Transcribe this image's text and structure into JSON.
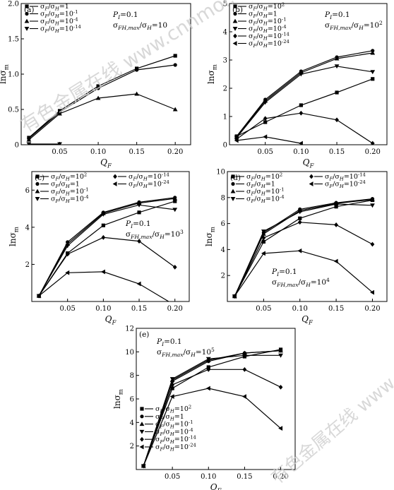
{
  "watermark": {
    "text": "有色金属在线 www.cnnmol.com"
  },
  "chart_data": [
    {
      "panel": "(a)",
      "type": "line",
      "xlabel": "Q_F",
      "ylabel": "lnσ_m",
      "xlim": [
        0,
        0.22
      ],
      "ylim": [
        0,
        2.0
      ],
      "xticks": [
        "0.05",
        "0.10",
        "0.15",
        "0.20"
      ],
      "yticks": [
        "0",
        "0.5",
        "1.0",
        "1.5",
        "2.0"
      ],
      "annotation": [
        "P_I=0.1",
        "σ_FH,max/σ_H=10"
      ],
      "legend_position": "top-left",
      "series": [
        {
          "name": "σ_F/σ_H=1",
          "marker": "square",
          "x": [
            0.01,
            0.05,
            0.1,
            0.15,
            0.2
          ],
          "y": [
            0.1,
            0.48,
            0.83,
            1.08,
            1.26
          ]
        },
        {
          "name": "σ_F/σ_H=10^-1",
          "marker": "circle",
          "x": [
            0.01,
            0.05,
            0.1,
            0.15,
            0.2
          ],
          "y": [
            0.09,
            0.46,
            0.8,
            1.06,
            1.13
          ]
        },
        {
          "name": "σ_F/σ_H=10^-4",
          "marker": "triangle-up",
          "x": [
            0.01,
            0.05,
            0.1,
            0.15,
            0.2
          ],
          "y": [
            0.07,
            0.44,
            0.66,
            0.72,
            0.5
          ]
        },
        {
          "name": "σ_F/σ_H=10^-14",
          "marker": "triangle-down",
          "x": [
            0.01,
            0.05
          ],
          "y": [
            0.01,
            0.01
          ]
        }
      ]
    },
    {
      "panel": "(b)",
      "type": "line",
      "xlabel": "Q_F",
      "ylabel": "lnσ_m",
      "xlim": [
        0,
        0.22
      ],
      "ylim": [
        0,
        5
      ],
      "xticks": [
        "0.05",
        "0.10",
        "0.15",
        "0.20"
      ],
      "yticks": [
        "0",
        "1",
        "2",
        "3",
        "4",
        "5"
      ],
      "annotation": [
        "P_I=0.1",
        "σ_FH,max/σ_H=10^2"
      ],
      "legend_position": "top-left",
      "series": [
        {
          "name": "σ_F/σ_H=10^2",
          "marker": "square",
          "x": [
            0.01,
            0.05,
            0.1,
            0.15,
            0.2
          ],
          "y": [
            0.3,
            0.8,
            1.4,
            1.85,
            2.33
          ]
        },
        {
          "name": "σ_F/σ_H=1",
          "marker": "circle",
          "x": [
            0.01,
            0.05,
            0.1,
            0.15,
            0.2
          ],
          "y": [
            0.3,
            1.6,
            2.6,
            3.1,
            3.33
          ]
        },
        {
          "name": "σ_F/σ_H=10^-1",
          "marker": "triangle-up",
          "x": [
            0.01,
            0.05,
            0.1,
            0.15,
            0.2
          ],
          "y": [
            0.28,
            1.55,
            2.55,
            3.05,
            3.25
          ]
        },
        {
          "name": "σ_F/σ_H=10^-4",
          "marker": "triangle-down",
          "x": [
            0.01,
            0.05,
            0.1,
            0.15,
            0.2
          ],
          "y": [
            0.25,
            1.5,
            2.5,
            2.78,
            2.58
          ]
        },
        {
          "name": "σ_F/σ_H=10^-14",
          "marker": "diamond",
          "x": [
            0.01,
            0.05,
            0.1,
            0.15,
            0.2
          ],
          "y": [
            0.2,
            0.93,
            1.12,
            0.88,
            0.05
          ]
        },
        {
          "name": "σ_F/σ_H=10^-24",
          "marker": "triangle-left",
          "x": [
            0.01,
            0.05,
            0.1
          ],
          "y": [
            0.15,
            0.28,
            0.05
          ]
        }
      ]
    },
    {
      "panel": "(c)",
      "type": "line",
      "xlabel": "Q_F",
      "ylabel": "lnσ_m",
      "xlim": [
        0,
        0.22
      ],
      "ylim": [
        0,
        7
      ],
      "xticks": [
        "0.05",
        "0.10",
        "0.15",
        "0.20"
      ],
      "yticks": [
        "2",
        "4",
        "6"
      ],
      "annotation": [
        "P_I=0.1",
        "σ_FH,max/σ_H=10^3"
      ],
      "legend_position": "top",
      "series": [
        {
          "name": "σ_F/σ_H=10^2",
          "marker": "square",
          "x": [
            0.01,
            0.05,
            0.1,
            0.15,
            0.2
          ],
          "y": [
            0.3,
            2.6,
            4.1,
            4.8,
            5.4
          ]
        },
        {
          "name": "σ_F/σ_H=1",
          "marker": "circle",
          "x": [
            0.01,
            0.05,
            0.1,
            0.15,
            0.2
          ],
          "y": [
            0.3,
            3.2,
            4.8,
            5.35,
            5.6
          ]
        },
        {
          "name": "σ_F/σ_H=10^-1",
          "marker": "triangle-up",
          "x": [
            0.01,
            0.05,
            0.1,
            0.15,
            0.2
          ],
          "y": [
            0.3,
            3.1,
            4.75,
            5.3,
            5.55
          ]
        },
        {
          "name": "σ_F/σ_H=10^-4",
          "marker": "triangle-down",
          "x": [
            0.01,
            0.05,
            0.1,
            0.15,
            0.2
          ],
          "y": [
            0.3,
            3.0,
            4.7,
            5.2,
            4.95
          ]
        },
        {
          "name": "σ_F/σ_H=10^-14",
          "marker": "diamond",
          "x": [
            0.01,
            0.05,
            0.1,
            0.15,
            0.2
          ],
          "y": [
            0.3,
            2.55,
            3.45,
            3.25,
            1.85
          ]
        },
        {
          "name": "σ_F/σ_H=10^-24",
          "marker": "triangle-left",
          "x": [
            0.01,
            0.05,
            0.1,
            0.15,
            0.2
          ],
          "y": [
            0.3,
            1.55,
            1.6,
            0.95,
            -0.2
          ]
        }
      ]
    },
    {
      "panel": "(d)",
      "type": "line",
      "xlabel": "Q_F",
      "ylabel": "lnσ_m",
      "xlim": [
        0,
        0.22
      ],
      "ylim": [
        0,
        10
      ],
      "xticks": [
        "0.05",
        "0.10",
        "0.15",
        "0.20"
      ],
      "yticks": [
        "2",
        "4",
        "6",
        "8",
        "10"
      ],
      "annotation": [
        "P_I=0.1",
        "σ_FH,max/σ_H=10^4"
      ],
      "legend_position": "top",
      "series": [
        {
          "name": "σ_F/σ_H=10^2",
          "marker": "square",
          "x": [
            0.01,
            0.05,
            0.1,
            0.15,
            0.2
          ],
          "y": [
            0.4,
            4.6,
            6.4,
            7.3,
            7.8
          ]
        },
        {
          "name": "σ_F/σ_H=1",
          "marker": "circle",
          "x": [
            0.01,
            0.05,
            0.1,
            0.15,
            0.2
          ],
          "y": [
            0.4,
            5.3,
            7.1,
            7.6,
            7.9
          ]
        },
        {
          "name": "σ_F/σ_H=10^-1",
          "marker": "triangle-up",
          "x": [
            0.01,
            0.05,
            0.1,
            0.15,
            0.2
          ],
          "y": [
            0.4,
            5.2,
            7.0,
            7.55,
            7.85
          ]
        },
        {
          "name": "σ_F/σ_H=10^-4",
          "marker": "triangle-down",
          "x": [
            0.01,
            0.05,
            0.1,
            0.15,
            0.2
          ],
          "y": [
            0.4,
            5.4,
            6.9,
            7.5,
            7.4
          ]
        },
        {
          "name": "σ_F/σ_H=10^-14",
          "marker": "diamond",
          "x": [
            0.01,
            0.05,
            0.1,
            0.15,
            0.2
          ],
          "y": [
            0.4,
            4.9,
            6.1,
            5.9,
            4.4
          ]
        },
        {
          "name": "σ_F/σ_H=10^-24",
          "marker": "triangle-left",
          "x": [
            0.01,
            0.05,
            0.1,
            0.15,
            0.2
          ],
          "y": [
            0.4,
            3.7,
            3.9,
            3.1,
            0.7
          ]
        }
      ]
    },
    {
      "panel": "(e)",
      "type": "line",
      "xlabel": "Q_F",
      "ylabel": "lnσ_m",
      "xlim": [
        0,
        0.22
      ],
      "ylim": [
        0,
        12
      ],
      "xticks": [
        "0.05",
        "0.10",
        "0.15",
        "0.20"
      ],
      "yticks": [
        "2",
        "4",
        "6",
        "8",
        "10",
        "12"
      ],
      "annotation": [
        "P_I=0.1",
        "σ_FH,max/σ_H=10^5"
      ],
      "legend_position": "bottom-right",
      "series": [
        {
          "name": "σ_F/σ_H=10^2",
          "marker": "square",
          "x": [
            0.01,
            0.05,
            0.1,
            0.15,
            0.2
          ],
          "y": [
            0.3,
            6.9,
            8.7,
            9.6,
            10.2
          ]
        },
        {
          "name": "σ_F/σ_H=1",
          "marker": "circle",
          "x": [
            0.01,
            0.05,
            0.1,
            0.15,
            0.2
          ],
          "y": [
            0.3,
            7.5,
            9.2,
            9.9,
            10.1
          ]
        },
        {
          "name": "σ_F/σ_H=10^-1",
          "marker": "triangle-up",
          "x": [
            0.01,
            0.05,
            0.1,
            0.15,
            0.2
          ],
          "y": [
            0.3,
            7.6,
            9.3,
            9.9,
            10.1
          ]
        },
        {
          "name": "σ_F/σ_H=10^-4",
          "marker": "triangle-down",
          "x": [
            0.01,
            0.05,
            0.1,
            0.15,
            0.2
          ],
          "y": [
            0.3,
            7.7,
            9.4,
            9.7,
            9.7
          ]
        },
        {
          "name": "σ_F/σ_H=10^-14",
          "marker": "diamond",
          "x": [
            0.01,
            0.05,
            0.1,
            0.15,
            0.2
          ],
          "y": [
            0.3,
            7.2,
            8.5,
            8.5,
            7.0
          ]
        },
        {
          "name": "σ_F/σ_H=10^-24",
          "marker": "triangle-left",
          "x": [
            0.01,
            0.05,
            0.1,
            0.15,
            0.2
          ],
          "y": [
            0.3,
            6.2,
            6.9,
            6.2,
            3.5
          ]
        }
      ]
    }
  ]
}
